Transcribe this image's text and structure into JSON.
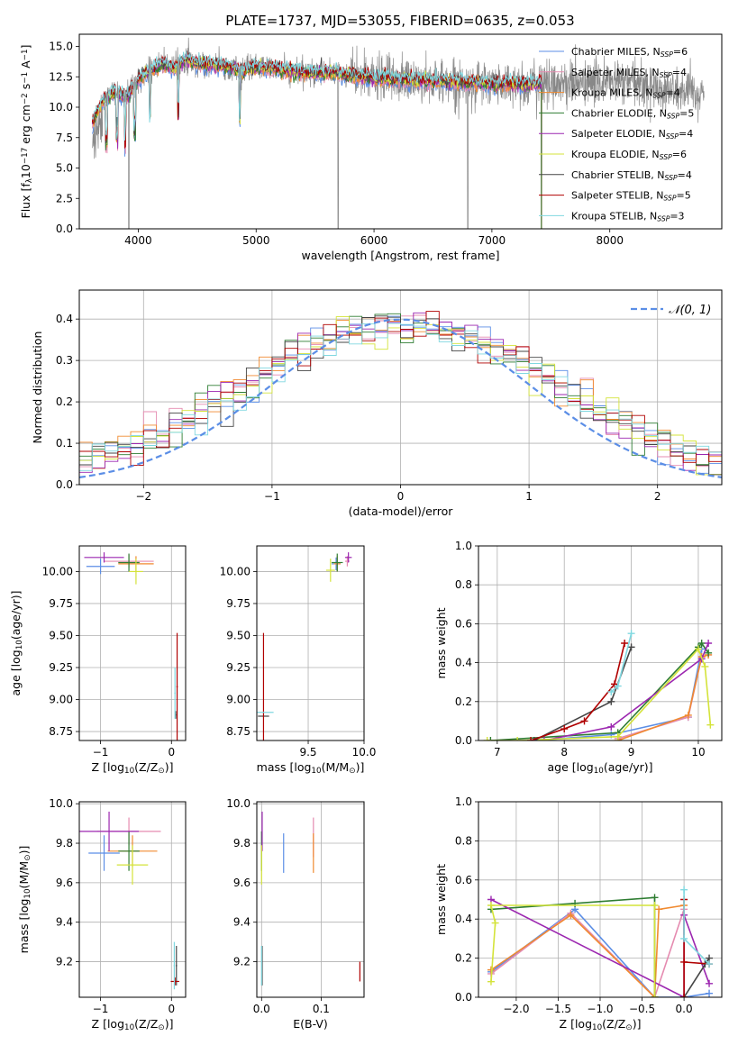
{
  "figure_title": "PLATE=1737, MJD=53055, FIBERID=0635, z=0.053",
  "colors": {
    "Chabrier MILES": "#5b8ee6",
    "Salpeter MILES": "#e58bb0",
    "Kroupa MILES": "#f08a30",
    "Chabrier ELODIE": "#2e7d32",
    "Salpeter ELODIE": "#9c27b0",
    "Kroupa ELODIE": "#d4e33a",
    "Chabrier STELIB": "#454545",
    "Salpeter STELIB": "#b00000",
    "Kroupa STELIB": "#80d8e0",
    "data": "#888888",
    "normal": "#5b8ee6"
  },
  "chart_data": [
    {
      "id": "spectrum",
      "type": "line",
      "xlabel": "wavelength [Angstrom, rest frame]",
      "ylabel": "Flux [f$_\\lambda$10$^{-17}$ erg cm$^{-2}$ s$^{-1}$ A$^{-1}$]",
      "xlim": [
        3500,
        8950
      ],
      "ylim": [
        0,
        16
      ],
      "xticks": [
        "4000",
        "5000",
        "6000",
        "7000",
        "8000"
      ],
      "yticks": [
        "0.0",
        "2.5",
        "5.0",
        "7.5",
        "10.0",
        "12.5",
        "15.0"
      ],
      "legend": "top-right",
      "series": [
        {
          "name": "Chabrier MILES, N$_{SSP}$=6",
          "color_key": "Chabrier MILES"
        },
        {
          "name": "Salpeter MILES, N$_{SSP}$=4",
          "color_key": "Salpeter MILES"
        },
        {
          "name": "Kroupa MILES, N$_{SSP}$=4",
          "color_key": "Kroupa MILES"
        },
        {
          "name": "Chabrier ELODIE, N$_{SSP}$=5",
          "color_key": "Chabrier ELODIE"
        },
        {
          "name": "Salpeter ELODIE, N$_{SSP}$=4",
          "color_key": "Salpeter ELODIE"
        },
        {
          "name": "Kroupa ELODIE, N$_{SSP}$=6",
          "color_key": "Kroupa ELODIE"
        },
        {
          "name": "Chabrier STELIB, N$_{SSP}$=4",
          "color_key": "Chabrier STELIB"
        },
        {
          "name": "Salpeter STELIB, N$_{SSP}$=5",
          "color_key": "Salpeter STELIB"
        },
        {
          "name": "Kroupa STELIB, N$_{SSP}$=3",
          "color_key": "Kroupa STELIB"
        }
      ],
      "continuum": [
        [
          3600,
          8.5
        ],
        [
          3650,
          9.5
        ],
        [
          3700,
          10.6
        ],
        [
          3800,
          11.3
        ],
        [
          3900,
          10.8
        ],
        [
          3950,
          11.5
        ],
        [
          4000,
          12.2
        ],
        [
          4100,
          13.0
        ],
        [
          4200,
          13.6
        ],
        [
          4300,
          13.2
        ],
        [
          4400,
          13.9
        ],
        [
          4500,
          13.6
        ],
        [
          4700,
          13.4
        ],
        [
          4900,
          13.0
        ],
        [
          5000,
          13.3
        ],
        [
          5200,
          13.1
        ],
        [
          5400,
          12.8
        ],
        [
          5600,
          12.9
        ],
        [
          5800,
          12.6
        ],
        [
          6000,
          12.4
        ],
        [
          6200,
          12.3
        ],
        [
          6400,
          12.2
        ],
        [
          6600,
          12.1
        ],
        [
          6800,
          12.0
        ],
        [
          7000,
          11.9
        ],
        [
          7200,
          11.9
        ],
        [
          7400,
          11.9
        ],
        [
          7600,
          12.0
        ],
        [
          7800,
          12.0
        ],
        [
          8000,
          12.1
        ],
        [
          8200,
          12.0
        ],
        [
          8400,
          11.6
        ],
        [
          8600,
          11.2
        ],
        [
          8800,
          11.0
        ]
      ],
      "model_xmax": 7420,
      "data_dips": [
        3920,
        5695,
        6795,
        7420
      ],
      "model_dips": [
        3730,
        3820,
        3890,
        3970,
        4100,
        4340,
        4860
      ]
    },
    {
      "id": "residuals",
      "type": "step",
      "xlabel": "(data-model)/error",
      "ylabel": "Normed distribution",
      "xlim": [
        -2.5,
        2.5
      ],
      "ylim": [
        0,
        0.47
      ],
      "xticks": [
        "−2",
        "−1",
        "0",
        "1",
        "2"
      ],
      "yticks": [
        "0.0",
        "0.1",
        "0.2",
        "0.3",
        "0.4"
      ],
      "legend_label": "$\\mathcal{N}(0, 1)$",
      "legend": "top-right",
      "bin_width": 0.1
    },
    {
      "id": "age_Z",
      "type": "errorbar",
      "xlabel": "Z [log$_{10}$(Z/Z$_\\odot$)]",
      "ylabel": "age  [log$_{10}$(age/yr)]",
      "xlim": [
        -1.3,
        0.2
      ],
      "ylim": [
        8.68,
        10.2
      ],
      "xticks": [
        "−1",
        "0"
      ],
      "yticks": [
        "8.75",
        "9.00",
        "9.25",
        "9.50",
        "9.75",
        "10.00"
      ],
      "points": [
        {
          "k": "Chabrier MILES",
          "x": -1.0,
          "xe": 0.2,
          "y": 10.04,
          "ye": 0.06
        },
        {
          "k": "Salpeter MILES",
          "x": -0.6,
          "xe": 0.35,
          "y": 10.08,
          "ye": 0.05
        },
        {
          "k": "Kroupa MILES",
          "x": -0.5,
          "xe": 0.25,
          "y": 10.06,
          "ye": 0.06
        },
        {
          "k": "Chabrier ELODIE",
          "x": -0.6,
          "xe": 0.15,
          "y": 10.07,
          "ye": 0.07
        },
        {
          "k": "Salpeter ELODIE",
          "x": -0.95,
          "xe": 0.28,
          "y": 10.11,
          "ye": 0.04
        },
        {
          "k": "Kroupa ELODIE",
          "x": -0.5,
          "xe": 0.1,
          "y": 10.0,
          "ye": 0.1
        },
        {
          "k": "Chabrier STELIB",
          "x": 0.06,
          "xe": 0.01,
          "y": 8.88,
          "ye": 0.03
        },
        {
          "k": "Salpeter STELIB",
          "x": 0.08,
          "xe": 0.01,
          "y": 9.1,
          "ye": 0.42
        },
        {
          "k": "Kroupa STELIB",
          "x": 0.05,
          "xe": 0.01,
          "y": 9.05,
          "ye": 0.2
        }
      ]
    },
    {
      "id": "age_mass",
      "type": "errorbar",
      "xlabel": "mass [log$_{10}$(M/M$_\\odot$)]",
      "ylabel": "",
      "xlim": [
        9.04,
        10.0
      ],
      "ylim": [
        8.68,
        10.2
      ],
      "xticks": [
        "9.5",
        "10.0"
      ],
      "yticks": [
        "8.75",
        "9.00",
        "9.25",
        "9.50",
        "9.75",
        "10.00"
      ],
      "points": [
        {
          "k": "Chabrier MILES",
          "x": 9.75,
          "xe": 0.04,
          "y": 10.06,
          "ye": 0.05
        },
        {
          "k": "Salpeter MILES",
          "x": 9.85,
          "xe": 0.02,
          "y": 10.08,
          "ye": 0.04
        },
        {
          "k": "Kroupa MILES",
          "x": 9.76,
          "xe": 0.03,
          "y": 10.06,
          "ye": 0.06
        },
        {
          "k": "Chabrier ELODIE",
          "x": 9.76,
          "xe": 0.05,
          "y": 10.07,
          "ye": 0.07
        },
        {
          "k": "Salpeter ELODIE",
          "x": 9.86,
          "xe": 0.03,
          "y": 10.11,
          "ye": 0.04
        },
        {
          "k": "Kroupa ELODIE",
          "x": 9.7,
          "xe": 0.04,
          "y": 10.01,
          "ye": 0.09
        },
        {
          "k": "Chabrier STELIB",
          "x": 9.1,
          "xe": 0.05,
          "y": 8.87,
          "ye": 0.0
        },
        {
          "k": "Salpeter STELIB",
          "x": 9.1,
          "xe": 0.0,
          "y": 9.1,
          "ye": 0.42
        },
        {
          "k": "Kroupa STELIB",
          "x": 9.1,
          "xe": 0.09,
          "y": 8.9,
          "ye": 0.0
        }
      ]
    },
    {
      "id": "mw_age",
      "type": "line",
      "xlabel": "age  [log$_{10}$(age/yr)]",
      "ylabel": "mass weight",
      "xlim": [
        6.72,
        10.35
      ],
      "ylim": [
        0,
        1
      ],
      "xticks": [
        "7",
        "8",
        "9",
        "10"
      ],
      "yticks": [
        "0.0",
        "0.2",
        "0.4",
        "0.6",
        "0.8",
        "1.0"
      ],
      "series": [
        {
          "k": "Chabrier MILES",
          "x": [
            7.6,
            8.7,
            9.85,
            10.05
          ],
          "y": [
            0.0,
            0.03,
            0.12,
            0.47
          ]
        },
        {
          "k": "Salpeter MILES",
          "x": [
            8.8,
            9.85,
            10.05,
            10.15
          ],
          "y": [
            0.01,
            0.12,
            0.43,
            0.44
          ]
        },
        {
          "k": "Kroupa MILES",
          "x": [
            8.8,
            9.85,
            10.05,
            10.15
          ],
          "y": [
            0.0,
            0.13,
            0.43,
            0.44
          ]
        },
        {
          "k": "Chabrier ELODIE",
          "x": [
            6.9,
            8.8,
            10.0,
            10.05,
            10.15
          ],
          "y": [
            0.0,
            0.04,
            0.48,
            0.5,
            0.45
          ]
        },
        {
          "k": "Salpeter ELODIE",
          "x": [
            7.7,
            8.7,
            10.05,
            10.15
          ],
          "y": [
            0.0,
            0.07,
            0.42,
            0.5
          ]
        },
        {
          "k": "Kroupa ELODIE",
          "x": [
            6.85,
            7.3,
            8.8,
            10.0,
            10.1,
            10.18
          ],
          "y": [
            0.0,
            0.0,
            0.02,
            0.47,
            0.38,
            0.08
          ]
        },
        {
          "k": "Chabrier STELIB",
          "x": [
            7.55,
            8.7,
            9.0
          ],
          "y": [
            0.0,
            0.2,
            0.48
          ]
        },
        {
          "k": "Salpeter STELIB",
          "x": [
            7.5,
            8.0,
            8.3,
            8.75,
            8.9
          ],
          "y": [
            0.0,
            0.06,
            0.1,
            0.29,
            0.5
          ]
        },
        {
          "k": "Kroupa STELIB",
          "x": [
            8.7,
            8.8,
            9.0
          ],
          "y": [
            0.25,
            0.28,
            0.55
          ]
        }
      ]
    },
    {
      "id": "mass_Z",
      "type": "errorbar",
      "xlabel": "Z [log$_{10}$(Z/Z$_\\odot$)]",
      "ylabel": "mass [log$_{10}$(M/M$_\\odot$)]",
      "xlim": [
        -1.3,
        0.2
      ],
      "ylim": [
        9.02,
        10.01
      ],
      "xticks": [
        "−1",
        "0"
      ],
      "yticks": [
        "9.2",
        "9.4",
        "9.6",
        "9.8",
        "10.0"
      ],
      "points": [
        {
          "k": "Chabrier MILES",
          "x": -0.95,
          "xe": 0.22,
          "y": 9.75,
          "ye": 0.09
        },
        {
          "k": "Salpeter MILES",
          "x": -0.6,
          "xe": 0.45,
          "y": 9.86,
          "ye": 0.07
        },
        {
          "k": "Kroupa MILES",
          "x": -0.55,
          "xe": 0.35,
          "y": 9.76,
          "ye": 0.08
        },
        {
          "k": "Chabrier ELODIE",
          "x": -0.6,
          "xe": 0.15,
          "y": 9.76,
          "ye": 0.1
        },
        {
          "k": "Salpeter ELODIE",
          "x": -0.88,
          "xe": 0.42,
          "y": 9.86,
          "ye": 0.1
        },
        {
          "k": "Kroupa ELODIE",
          "x": -0.55,
          "xe": 0.22,
          "y": 9.69,
          "ye": 0.1
        },
        {
          "k": "Chabrier STELIB",
          "x": 0.07,
          "xe": 0.01,
          "y": 9.18,
          "ye": 0.1
        },
        {
          "k": "Salpeter STELIB",
          "x": 0.05,
          "xe": 0.06,
          "y": 9.1,
          "ye": 0.02
        },
        {
          "k": "Kroupa STELIB",
          "x": 0.04,
          "xe": 0.01,
          "y": 9.18,
          "ye": 0.12
        }
      ]
    },
    {
      "id": "mass_EBV",
      "type": "errorbar",
      "xlabel": "E(B-V)",
      "ylabel": "",
      "xlim": [
        -0.008,
        0.172
      ],
      "ylim": [
        9.02,
        10.01
      ],
      "xticks": [
        "0.0",
        "0.1"
      ],
      "yticks": [
        "9.2",
        "9.4",
        "9.6",
        "9.8",
        "10.0"
      ],
      "points": [
        {
          "k": "Chabrier MILES",
          "x": 0.037,
          "xe": 0.0,
          "y": 9.75,
          "ye": 0.1
        },
        {
          "k": "Salpeter MILES",
          "x": 0.087,
          "xe": 0.0,
          "y": 9.83,
          "ye": 0.1
        },
        {
          "k": "Kroupa MILES",
          "x": 0.087,
          "xe": 0.0,
          "y": 9.75,
          "ye": 0.1
        },
        {
          "k": "Chabrier ELODIE",
          "x": 0.0,
          "xe": 0.0,
          "y": 9.76,
          "ye": 0.1
        },
        {
          "k": "Salpeter ELODIE",
          "x": 0.001,
          "xe": 0.0,
          "y": 9.86,
          "ye": 0.1
        },
        {
          "k": "Kroupa ELODIE",
          "x": 0.0,
          "xe": 0.0,
          "y": 9.69,
          "ye": 0.1
        },
        {
          "k": "Chabrier STELIB",
          "x": 0.001,
          "xe": 0.0,
          "y": 9.18,
          "ye": 0.1
        },
        {
          "k": "Salpeter STELIB",
          "x": 0.165,
          "xe": 0.0,
          "y": 9.15,
          "ye": 0.05
        },
        {
          "k": "Kroupa STELIB",
          "x": 0.0,
          "xe": 0.0,
          "y": 9.18,
          "ye": 0.1
        }
      ]
    },
    {
      "id": "mw_Z",
      "type": "line",
      "xlabel": "Z [log$_{10}$(Z/Z$_\\odot$)]",
      "ylabel": "mass weight",
      "xlim": [
        -2.45,
        0.45
      ],
      "ylim": [
        0,
        1
      ],
      "xticks": [
        "−2.0",
        "−1.5",
        "−1.0",
        "−0.5",
        "0.0"
      ],
      "yticks": [
        "0.0",
        "0.2",
        "0.4",
        "0.6",
        "0.8",
        "1.0"
      ],
      "series": [
        {
          "k": "Chabrier MILES",
          "x": [
            -2.3,
            -1.3,
            -0.35,
            0.0,
            0.3
          ],
          "y": [
            0.13,
            0.45,
            0.0,
            0.0,
            0.02
          ]
        },
        {
          "k": "Salpeter MILES",
          "x": [
            -2.3,
            -1.35,
            -0.35,
            0.0
          ],
          "y": [
            0.12,
            0.43,
            0.0,
            0.45
          ]
        },
        {
          "k": "Kroupa MILES",
          "x": [
            -2.3,
            -1.35,
            -0.35,
            -0.3,
            0.0
          ],
          "y": [
            0.14,
            0.42,
            0.0,
            0.45,
            0.47
          ]
        },
        {
          "k": "Chabrier ELODIE",
          "x": [
            -2.3,
            -1.3,
            -0.35,
            -0.35
          ],
          "y": [
            0.45,
            0.48,
            0.51,
            0.0
          ]
        },
        {
          "k": "Salpeter ELODIE",
          "x": [
            -2.3,
            0.0,
            0.0,
            0.3
          ],
          "y": [
            0.5,
            0.0,
            0.42,
            0.07
          ]
        },
        {
          "k": "Kroupa ELODIE",
          "x": [
            -2.3,
            -2.25,
            -2.3,
            -0.35,
            -0.35
          ],
          "y": [
            0.08,
            0.38,
            0.47,
            0.47,
            0.0
          ]
        },
        {
          "k": "Chabrier STELIB",
          "x": [
            0.0,
            0.3,
            0.25
          ],
          "y": [
            0.0,
            0.2,
            0.17
          ]
        },
        {
          "k": "Salpeter STELIB",
          "x": [
            0.0,
            0.0,
            0.0,
            0.3
          ],
          "y": [
            0.0,
            0.5,
            0.18,
            0.17
          ]
        },
        {
          "k": "Kroupa STELIB",
          "x": [
            0.0,
            0.0,
            0.3
          ],
          "y": [
            0.55,
            0.3,
            0.17
          ]
        }
      ]
    }
  ]
}
